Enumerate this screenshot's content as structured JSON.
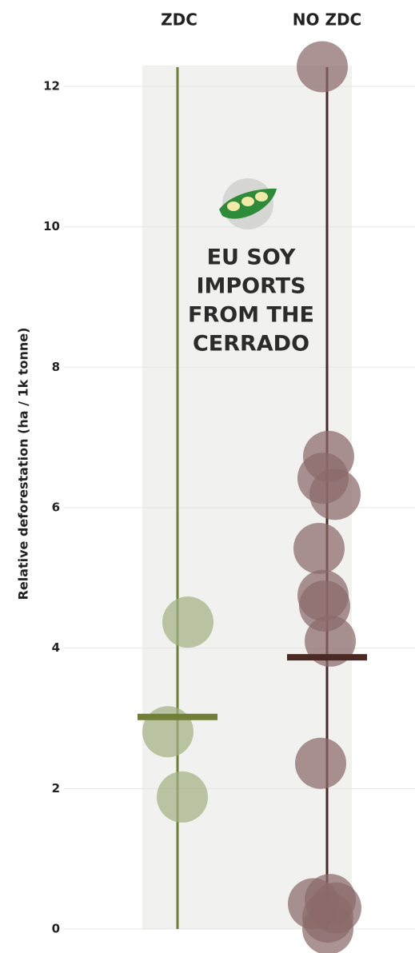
{
  "chart_data": {
    "type": "strip",
    "y_label": "Relative deforestation (ha / 1k tonne)",
    "annotation": [
      "EU SOY",
      "IMPORTS",
      "FROM THE",
      "CERRADO"
    ],
    "series": [
      {
        "name": "ZDC",
        "color": "#a3b283",
        "line_color": "#6f7f36",
        "values": [
          4.37,
          2.81,
          1.88
        ],
        "mean": 3.02
      },
      {
        "name": "NO ZDC",
        "color": "#8a6a6a",
        "line_color": "#4b2a26",
        "values": [
          12.28,
          6.73,
          6.42,
          6.19,
          5.42,
          4.75,
          4.6,
          4.1,
          2.36,
          0.36,
          0.42,
          0.3,
          0.17,
          0.0
        ],
        "mean": 3.87
      }
    ],
    "ylim": [
      0,
      12.3
    ],
    "yticks": [
      0,
      2,
      4,
      6,
      8,
      10,
      12
    ],
    "grid": true
  }
}
